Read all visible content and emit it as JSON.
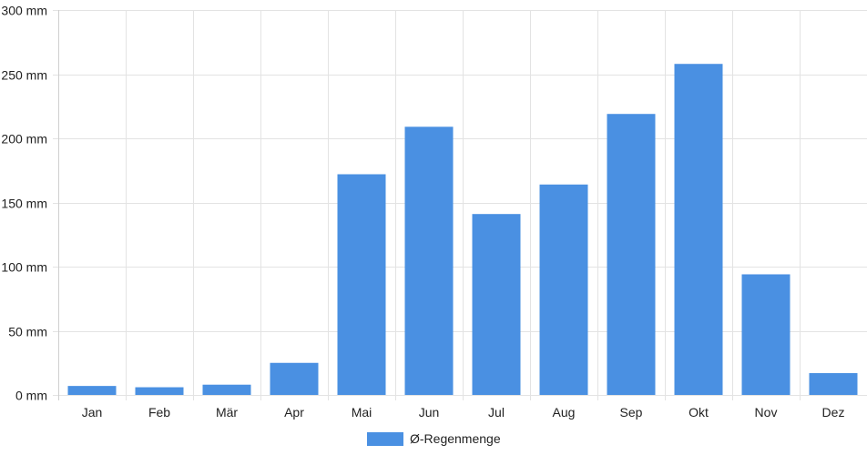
{
  "chart_data": {
    "type": "bar",
    "categories": [
      "Jan",
      "Feb",
      "Mär",
      "Apr",
      "Mai",
      "Jun",
      "Jul",
      "Aug",
      "Sep",
      "Okt",
      "Nov",
      "Dez"
    ],
    "series": [
      {
        "name": "Ø-Regenmenge",
        "color": "#4a90e2",
        "values": [
          7,
          6,
          8,
          25,
          172,
          209,
          141,
          164,
          219,
          258,
          94,
          17
        ]
      }
    ],
    "yticks": [
      "0 mm",
      "50 mm",
      "100 mm",
      "150 mm",
      "200 mm",
      "250 mm",
      "300 mm"
    ],
    "ylim": [
      0,
      300
    ],
    "grid": true,
    "legend_position": "bottom"
  }
}
